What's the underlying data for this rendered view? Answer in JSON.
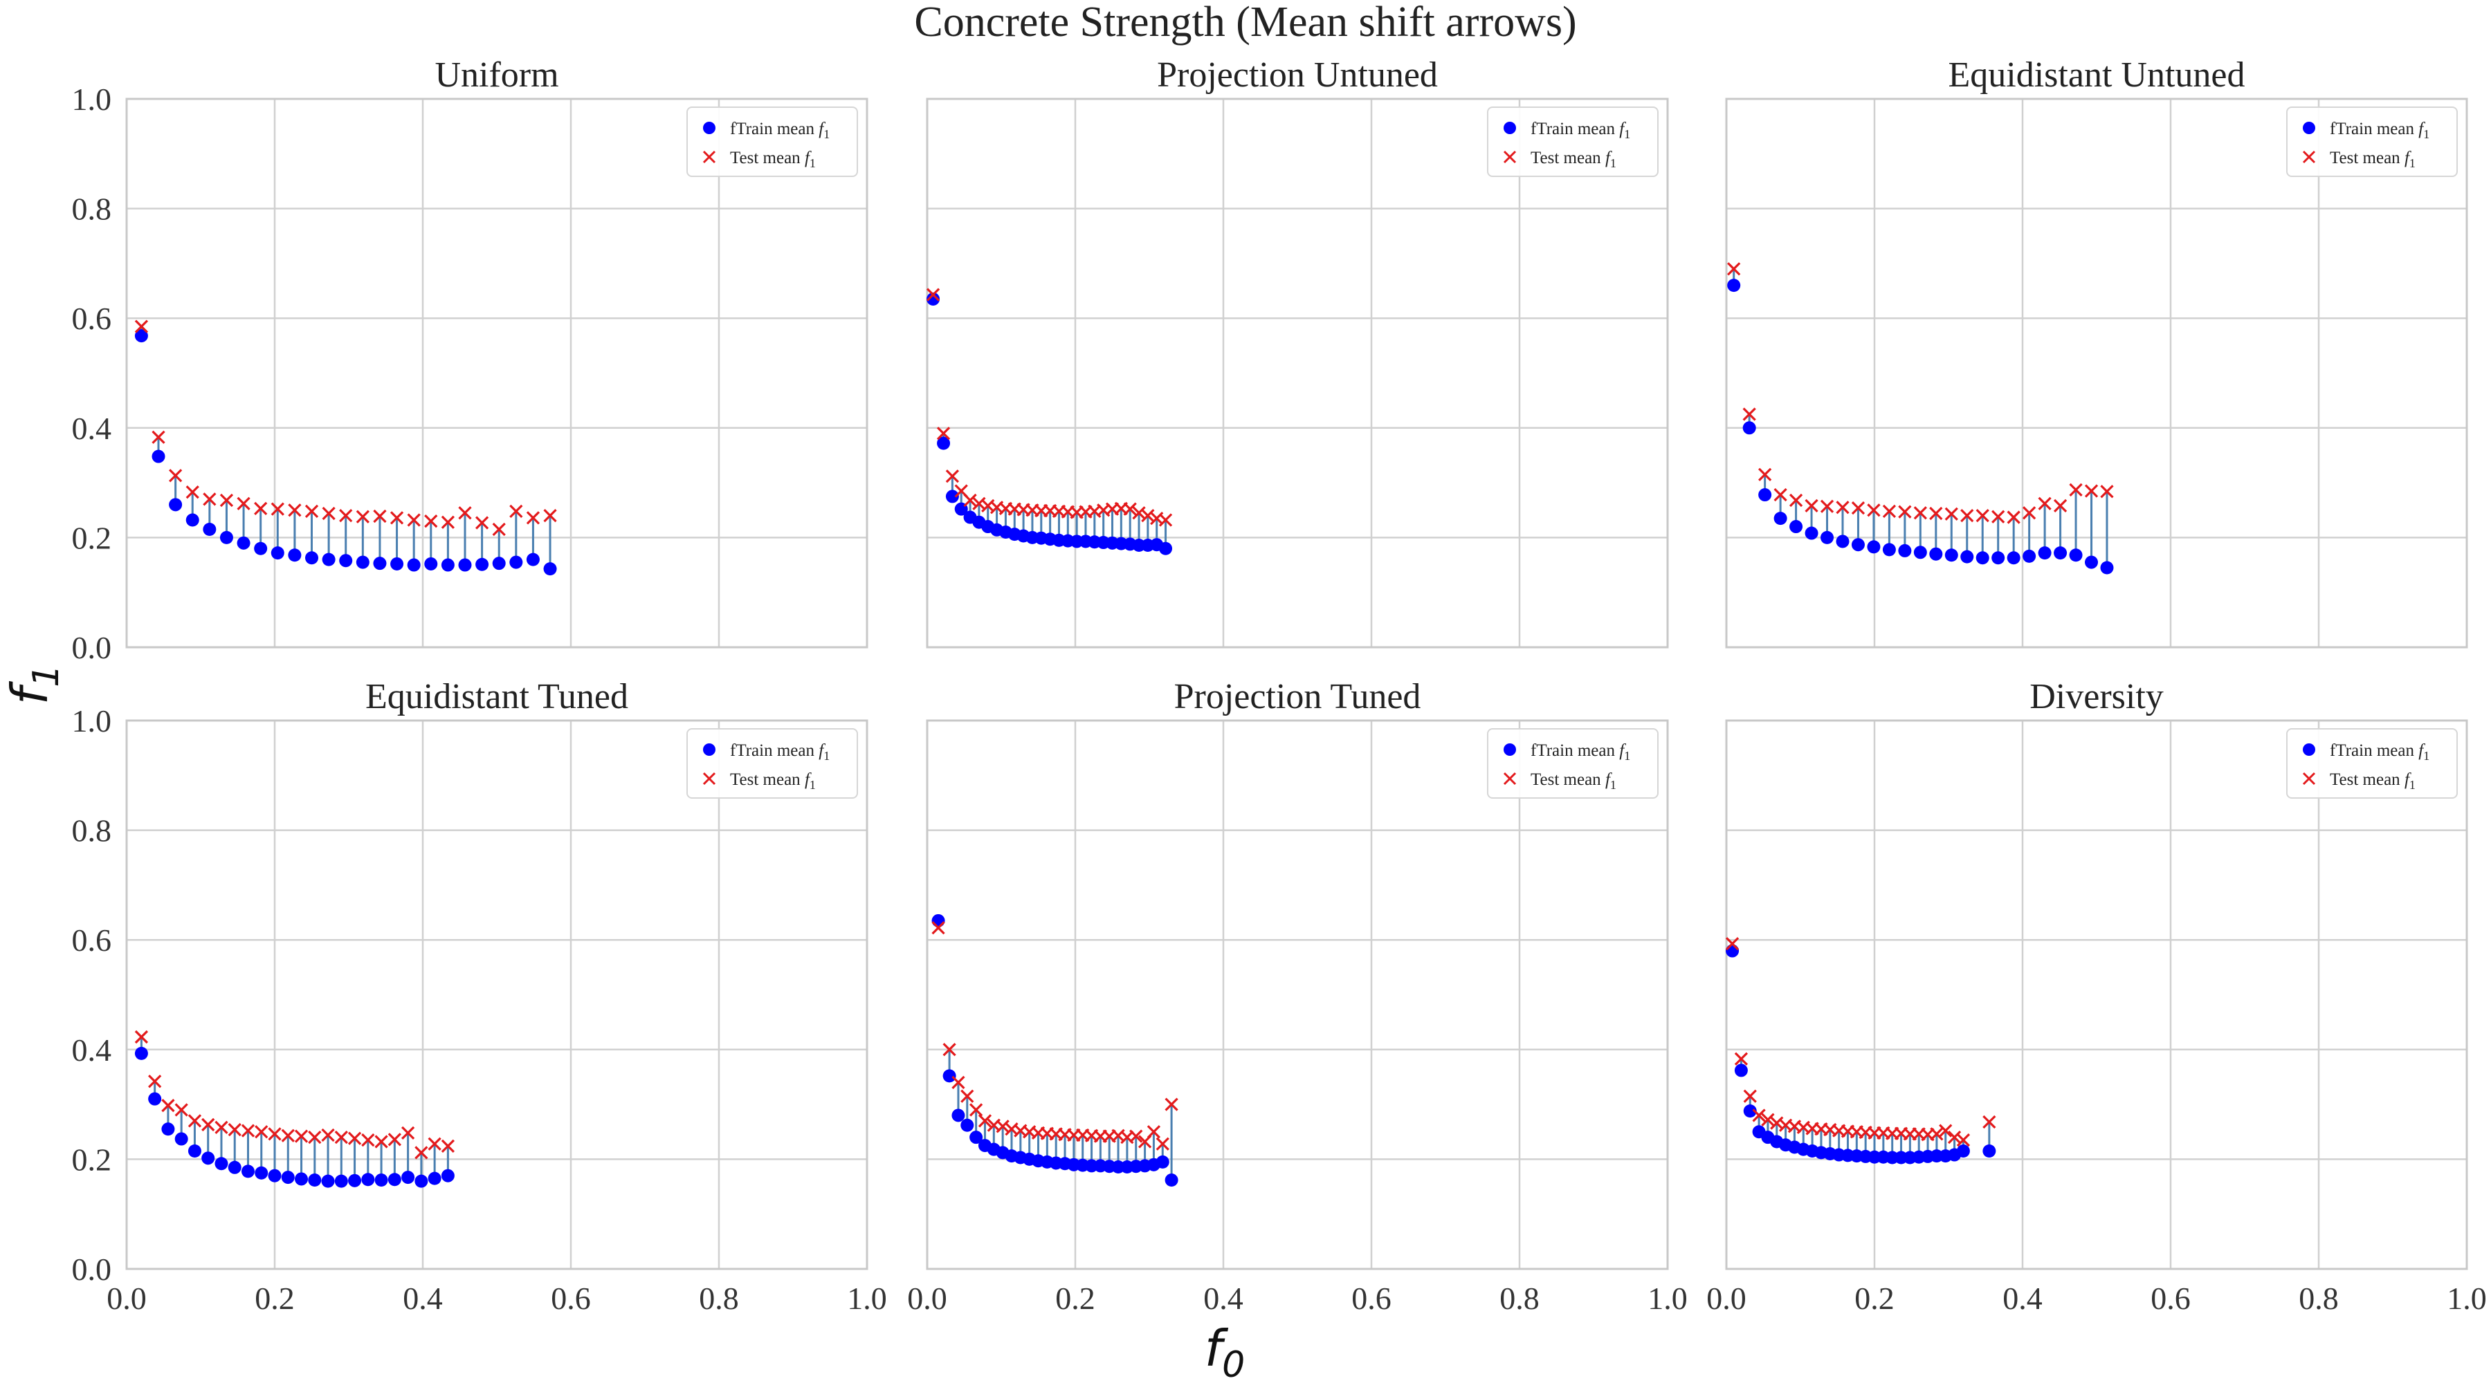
{
  "figure": {
    "suptitle": "Concrete Strength (Mean shift arrows)",
    "xlabel": "f",
    "xlabel_sub": "0",
    "ylabel": "f",
    "ylabel_sub": "1"
  },
  "legend": {
    "train_label": "fTrain mean",
    "test_label": "Test mean",
    "symbol": "f",
    "symbol_sub": "1"
  },
  "colors": {
    "train": "#0000ff",
    "test": "#e31a1c",
    "shift_line": "#4a7fb0",
    "grid": "#d0d0d0",
    "frame": "#c8c8c8"
  },
  "chart_data": [
    {
      "type": "scatter",
      "title": "Uniform",
      "xlim": [
        0,
        1
      ],
      "ylim": [
        0,
        1
      ],
      "grid": true,
      "legend_position": "top-right",
      "xticks": [
        "0.0",
        "0.2",
        "0.4",
        "0.6",
        "0.8",
        "1.0"
      ],
      "yticks": [
        "0.0",
        "0.2",
        "0.4",
        "0.6",
        "0.8",
        "1.0"
      ],
      "x": [
        0.02,
        0.043,
        0.066,
        0.089,
        0.112,
        0.135,
        0.158,
        0.181,
        0.204,
        0.227,
        0.25,
        0.273,
        0.296,
        0.319,
        0.342,
        0.365,
        0.388,
        0.411,
        0.434,
        0.457,
        0.48,
        0.503,
        0.526,
        0.549,
        0.572
      ],
      "series": [
        {
          "name": "fTrain mean f1",
          "marker": "circle",
          "values": [
            0.568,
            0.348,
            0.26,
            0.232,
            0.215,
            0.2,
            0.19,
            0.18,
            0.172,
            0.168,
            0.163,
            0.16,
            0.158,
            0.155,
            0.153,
            0.152,
            0.15,
            0.152,
            0.15,
            0.15,
            0.151,
            0.153,
            0.155,
            0.16,
            0.143
          ]
        },
        {
          "name": "Test mean f1",
          "marker": "x",
          "values": [
            0.585,
            0.383,
            0.313,
            0.283,
            0.27,
            0.268,
            0.262,
            0.253,
            0.252,
            0.25,
            0.248,
            0.244,
            0.24,
            0.238,
            0.239,
            0.236,
            0.232,
            0.23,
            0.228,
            0.245,
            0.227,
            0.215,
            0.248,
            0.236,
            0.24
          ]
        }
      ]
    },
    {
      "type": "scatter",
      "title": "Projection Untuned",
      "xlim": [
        0,
        1
      ],
      "ylim": [
        0,
        1
      ],
      "grid": true,
      "legend_position": "top-right",
      "xticks": [
        "0.0",
        "0.2",
        "0.4",
        "0.6",
        "0.8",
        "1.0"
      ],
      "yticks": [
        "0.0",
        "0.2",
        "0.4",
        "0.6",
        "0.8",
        "1.0"
      ],
      "x": [
        0.008,
        0.022,
        0.034,
        0.046,
        0.058,
        0.07,
        0.082,
        0.094,
        0.106,
        0.118,
        0.13,
        0.142,
        0.154,
        0.166,
        0.178,
        0.19,
        0.202,
        0.214,
        0.226,
        0.238,
        0.25,
        0.262,
        0.274,
        0.286,
        0.298,
        0.31,
        0.322
      ],
      "series": [
        {
          "name": "fTrain mean f1",
          "marker": "circle",
          "values": [
            0.635,
            0.372,
            0.275,
            0.252,
            0.237,
            0.228,
            0.22,
            0.214,
            0.21,
            0.206,
            0.203,
            0.2,
            0.199,
            0.197,
            0.195,
            0.194,
            0.193,
            0.193,
            0.192,
            0.191,
            0.19,
            0.189,
            0.188,
            0.186,
            0.186,
            0.187,
            0.18
          ]
        },
        {
          "name": "Test mean f1",
          "marker": "x",
          "values": [
            0.643,
            0.39,
            0.312,
            0.285,
            0.268,
            0.262,
            0.258,
            0.255,
            0.253,
            0.252,
            0.251,
            0.25,
            0.249,
            0.249,
            0.248,
            0.247,
            0.246,
            0.247,
            0.248,
            0.25,
            0.252,
            0.253,
            0.252,
            0.245,
            0.24,
            0.235,
            0.232
          ]
        }
      ]
    },
    {
      "type": "scatter",
      "title": "Equidistant Untuned",
      "xlim": [
        0,
        1
      ],
      "ylim": [
        0,
        1
      ],
      "grid": true,
      "legend_position": "top-right",
      "xticks": [
        "0.0",
        "0.2",
        "0.4",
        "0.6",
        "0.8",
        "1.0"
      ],
      "yticks": [
        "0.0",
        "0.2",
        "0.4",
        "0.6",
        "0.8",
        "1.0"
      ],
      "x": [
        0.01,
        0.031,
        0.052,
        0.073,
        0.094,
        0.115,
        0.136,
        0.157,
        0.178,
        0.199,
        0.22,
        0.241,
        0.262,
        0.283,
        0.304,
        0.325,
        0.346,
        0.367,
        0.388,
        0.409,
        0.43,
        0.451,
        0.472,
        0.493,
        0.514
      ],
      "series": [
        {
          "name": "fTrain mean f1",
          "marker": "circle",
          "values": [
            0.66,
            0.4,
            0.278,
            0.235,
            0.22,
            0.208,
            0.2,
            0.193,
            0.187,
            0.183,
            0.178,
            0.176,
            0.173,
            0.17,
            0.168,
            0.165,
            0.163,
            0.163,
            0.163,
            0.166,
            0.172,
            0.172,
            0.168,
            0.155,
            0.145
          ]
        },
        {
          "name": "Test mean f1",
          "marker": "x",
          "values": [
            0.69,
            0.425,
            0.315,
            0.278,
            0.268,
            0.258,
            0.257,
            0.255,
            0.254,
            0.25,
            0.248,
            0.247,
            0.245,
            0.244,
            0.243,
            0.24,
            0.24,
            0.238,
            0.237,
            0.245,
            0.262,
            0.258,
            0.287,
            0.285,
            0.284
          ]
        }
      ]
    },
    {
      "type": "scatter",
      "title": "Equidistant Tuned",
      "xlim": [
        0,
        1
      ],
      "ylim": [
        0,
        1
      ],
      "grid": true,
      "legend_position": "top-right",
      "xticks": [
        "0.0",
        "0.2",
        "0.4",
        "0.6",
        "0.8",
        "1.0"
      ],
      "yticks": [
        "0.0",
        "0.2",
        "0.4",
        "0.6",
        "0.8",
        "1.0"
      ],
      "x": [
        0.02,
        0.038,
        0.056,
        0.074,
        0.092,
        0.11,
        0.128,
        0.146,
        0.164,
        0.182,
        0.2,
        0.218,
        0.236,
        0.254,
        0.272,
        0.29,
        0.308,
        0.326,
        0.344,
        0.362,
        0.38,
        0.398,
        0.416,
        0.434
      ],
      "series": [
        {
          "name": "fTrain mean f1",
          "marker": "circle",
          "values": [
            0.393,
            0.31,
            0.255,
            0.237,
            0.215,
            0.202,
            0.192,
            0.185,
            0.178,
            0.175,
            0.17,
            0.167,
            0.164,
            0.162,
            0.16,
            0.16,
            0.161,
            0.163,
            0.162,
            0.163,
            0.167,
            0.16,
            0.165,
            0.17
          ]
        },
        {
          "name": "Test mean f1",
          "marker": "x",
          "values": [
            0.423,
            0.342,
            0.298,
            0.29,
            0.27,
            0.263,
            0.258,
            0.254,
            0.252,
            0.25,
            0.246,
            0.243,
            0.242,
            0.24,
            0.244,
            0.24,
            0.238,
            0.235,
            0.232,
            0.236,
            0.248,
            0.212,
            0.228,
            0.224
          ]
        }
      ]
    },
    {
      "type": "scatter",
      "title": "Projection Tuned",
      "xlim": [
        0,
        1
      ],
      "ylim": [
        0,
        1
      ],
      "grid": true,
      "legend_position": "top-right",
      "xticks": [
        "0.0",
        "0.2",
        "0.4",
        "0.6",
        "0.8",
        "1.0"
      ],
      "yticks": [
        "0.0",
        "0.2",
        "0.4",
        "0.6",
        "0.8",
        "1.0"
      ],
      "x": [
        0.015,
        0.03,
        0.042,
        0.054,
        0.066,
        0.078,
        0.09,
        0.102,
        0.114,
        0.126,
        0.138,
        0.15,
        0.162,
        0.174,
        0.186,
        0.198,
        0.21,
        0.222,
        0.234,
        0.246,
        0.258,
        0.27,
        0.282,
        0.294,
        0.306,
        0.318,
        0.33
      ],
      "series": [
        {
          "name": "fTrain mean f1",
          "marker": "circle",
          "values": [
            0.635,
            0.352,
            0.28,
            0.262,
            0.24,
            0.225,
            0.218,
            0.212,
            0.206,
            0.203,
            0.2,
            0.197,
            0.195,
            0.193,
            0.192,
            0.19,
            0.189,
            0.188,
            0.188,
            0.187,
            0.186,
            0.186,
            0.187,
            0.188,
            0.19,
            0.195,
            0.162
          ]
        },
        {
          "name": "Test mean f1",
          "marker": "x",
          "values": [
            0.622,
            0.4,
            0.34,
            0.315,
            0.29,
            0.27,
            0.262,
            0.26,
            0.255,
            0.252,
            0.25,
            0.248,
            0.247,
            0.246,
            0.245,
            0.244,
            0.244,
            0.243,
            0.242,
            0.242,
            0.243,
            0.24,
            0.242,
            0.232,
            0.25,
            0.228,
            0.3
          ]
        }
      ]
    },
    {
      "type": "scatter",
      "title": "Diversity",
      "xlim": [
        0,
        1
      ],
      "ylim": [
        0,
        1
      ],
      "grid": true,
      "legend_position": "top-right",
      "xticks": [
        "0.0",
        "0.2",
        "0.4",
        "0.6",
        "0.8",
        "1.0"
      ],
      "yticks": [
        "0.0",
        "0.2",
        "0.4",
        "0.6",
        "0.8",
        "1.0"
      ],
      "x": [
        0.008,
        0.02,
        0.032,
        0.044,
        0.056,
        0.068,
        0.08,
        0.092,
        0.104,
        0.116,
        0.128,
        0.14,
        0.152,
        0.164,
        0.176,
        0.188,
        0.2,
        0.212,
        0.224,
        0.236,
        0.248,
        0.26,
        0.272,
        0.284,
        0.296,
        0.308,
        0.32,
        0.355
      ],
      "series": [
        {
          "name": "fTrain mean f1",
          "marker": "circle",
          "values": [
            0.58,
            0.362,
            0.288,
            0.25,
            0.24,
            0.232,
            0.226,
            0.222,
            0.218,
            0.215,
            0.212,
            0.21,
            0.208,
            0.207,
            0.206,
            0.205,
            0.204,
            0.204,
            0.203,
            0.203,
            0.203,
            0.204,
            0.205,
            0.206,
            0.206,
            0.208,
            0.215,
            0.215
          ]
        },
        {
          "name": "Test mean f1",
          "marker": "x",
          "values": [
            0.593,
            0.383,
            0.315,
            0.28,
            0.272,
            0.266,
            0.262,
            0.26,
            0.258,
            0.256,
            0.255,
            0.254,
            0.252,
            0.251,
            0.25,
            0.249,
            0.248,
            0.248,
            0.247,
            0.247,
            0.246,
            0.246,
            0.245,
            0.246,
            0.252,
            0.24,
            0.235,
            0.268
          ]
        }
      ]
    }
  ]
}
